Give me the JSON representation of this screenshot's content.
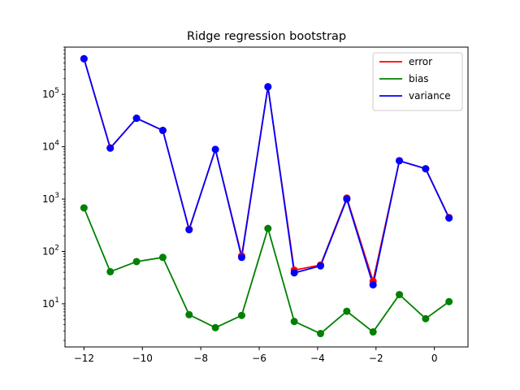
{
  "chart_data": {
    "type": "line",
    "title": "Ridge regression bootstrap",
    "xlabel": "",
    "ylabel": "",
    "x": [
      -12.0,
      -11.1,
      -10.2,
      -9.3,
      -8.4,
      -7.5,
      -6.6,
      -5.7,
      -4.8,
      -3.9,
      -3.0,
      -2.1,
      -1.2,
      -0.3,
      0.5
    ],
    "xlim": [
      -12.65,
      1.15
    ],
    "ylim": [
      1.5,
      800000
    ],
    "yscale": "log",
    "xticks": [
      -12,
      -10,
      -8,
      -6,
      -4,
      -2,
      0
    ],
    "xtick_labels": [
      "−12",
      "−10",
      "−8",
      "−6",
      "−4",
      "−2",
      "0"
    ],
    "yticks": [
      10,
      100,
      1000,
      10000,
      100000
    ],
    "ytick_labels": [
      [
        "10",
        "1"
      ],
      [
        "10",
        "2"
      ],
      [
        "10",
        "3"
      ],
      [
        "10",
        "4"
      ],
      [
        "10",
        "5"
      ]
    ],
    "grid": false,
    "legend_position": "top-right",
    "series": [
      {
        "name": "error",
        "color": "#ff0000",
        "values": [
          480000,
          9500,
          35000,
          20500,
          265,
          8900,
          82,
          140000,
          44,
          55,
          1050,
          27,
          5400,
          3800,
          445
        ]
      },
      {
        "name": "bias",
        "color": "#008000",
        "values": [
          680,
          41,
          64,
          77,
          6.2,
          3.5,
          6.0,
          275,
          4.6,
          2.7,
          7.2,
          2.9,
          15,
          5.2,
          11
        ]
      },
      {
        "name": "variance",
        "color": "#0000ff",
        "values": [
          480000,
          9400,
          35000,
          20500,
          260,
          8900,
          77,
          140000,
          39,
          53,
          1000,
          23,
          5400,
          3800,
          435
        ]
      }
    ]
  }
}
